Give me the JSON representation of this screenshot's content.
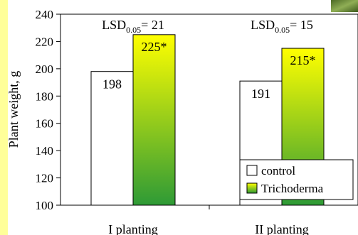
{
  "chart_data": {
    "type": "bar",
    "categories": [
      "I planting",
      "II planting"
    ],
    "series": [
      {
        "name": "control",
        "values": [
          198,
          191
        ],
        "labels": [
          "198",
          "191"
        ],
        "fill": "#ffffff"
      },
      {
        "name": "Trichoderma",
        "values": [
          225,
          215
        ],
        "labels": [
          "225*",
          "215*"
        ],
        "fill_top": "#ffff00",
        "fill_bottom": "#2e9a36"
      }
    ],
    "annotations": [
      {
        "category": "I planting",
        "prefix": "LSD",
        "subscript": "0.05",
        "suffix": "= 21"
      },
      {
        "category": "II planting",
        "prefix": "LSD",
        "subscript": "0.05",
        "suffix": "= 15"
      }
    ],
    "ylabel": "Plant weight, g",
    "xlabel": "",
    "ylim": [
      100,
      240
    ],
    "yticks": [
      100,
      120,
      140,
      160,
      180,
      200,
      220,
      240
    ],
    "grid": false,
    "legend_position": "bottom-right",
    "colors": {
      "left_strip": "#ffff99",
      "axis": "#000000",
      "photo_green": "#6f8f3a"
    }
  }
}
